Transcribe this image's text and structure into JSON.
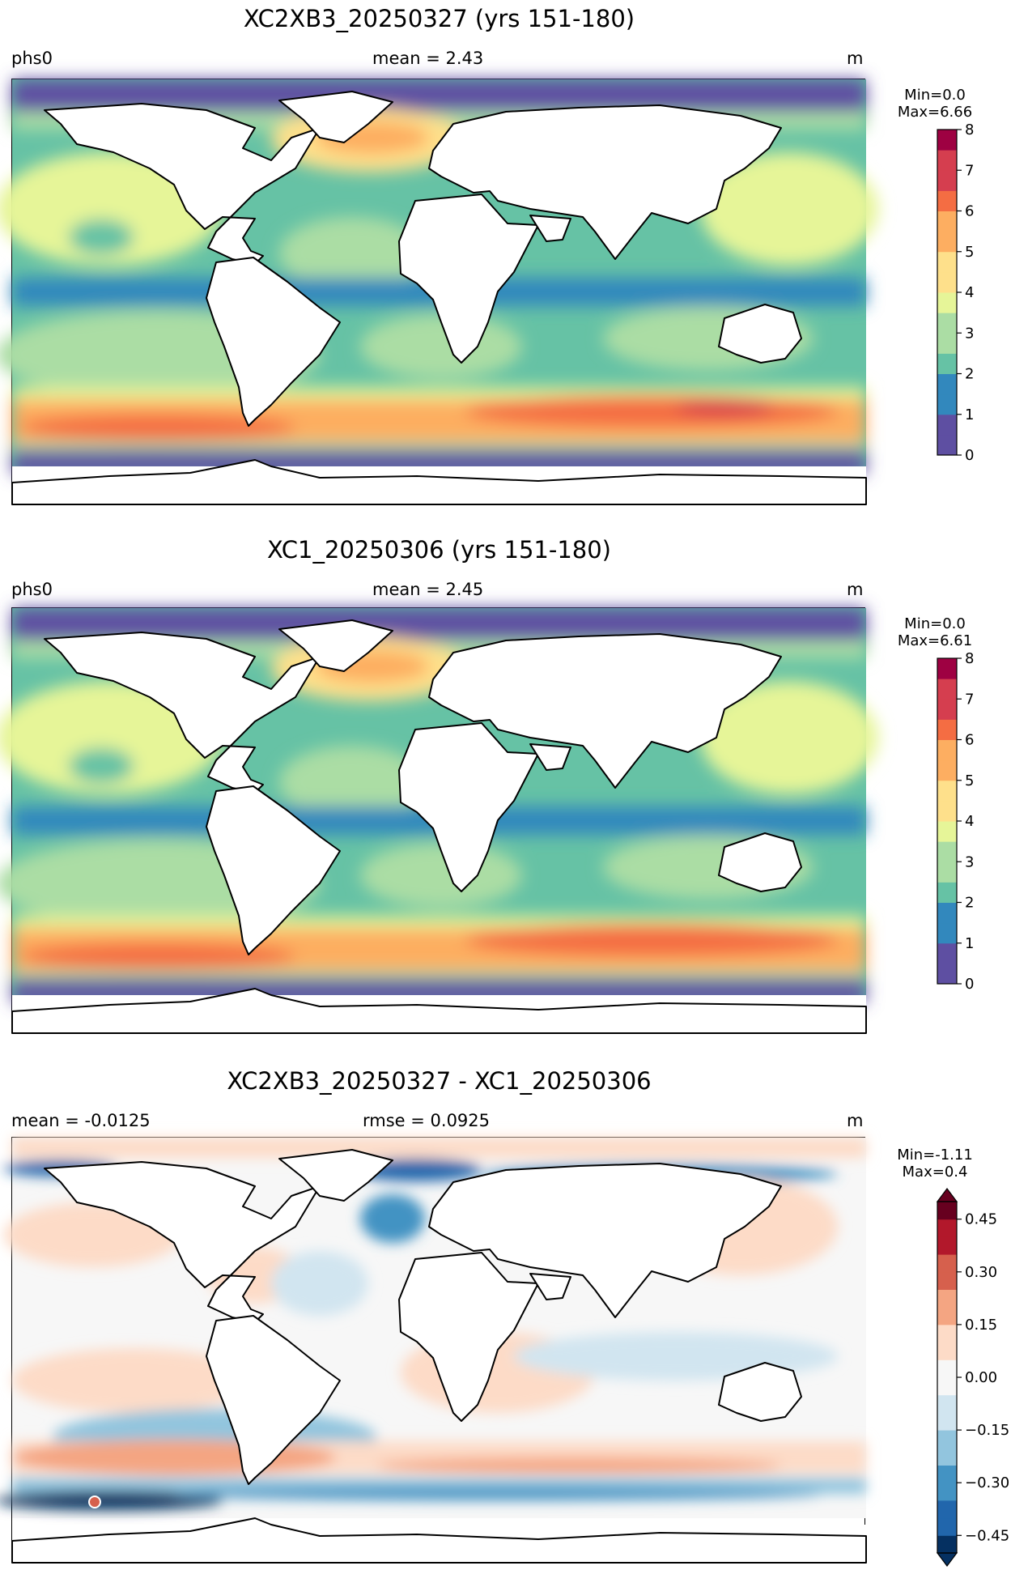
{
  "panels": [
    {
      "title": "XC2XB3_20250327 (yrs 151-180)",
      "left_label": "phs0",
      "center_label": "mean = 2.43",
      "right_label": "m",
      "cb_min_label": "Min=0.0",
      "cb_max_label": "Max=6.66",
      "colorbar_ticks": [
        "0",
        "1",
        "2",
        "3",
        "4",
        "5",
        "6",
        "7",
        "8"
      ]
    },
    {
      "title": "XC1_20250306 (yrs 151-180)",
      "left_label": "phs0",
      "center_label": "mean = 2.45",
      "right_label": "m",
      "cb_min_label": "Min=0.0",
      "cb_max_label": "Max=6.61",
      "colorbar_ticks": [
        "0",
        "1",
        "2",
        "3",
        "4",
        "5",
        "6",
        "7",
        "8"
      ]
    },
    {
      "title": "XC2XB3_20250327 - XC1_20250306",
      "left_label": "mean = -0.0125",
      "center_label": "rmse = 0.0925",
      "right_label": "m",
      "cb_min_label": "Min=-1.11",
      "cb_max_label": "Max=0.4",
      "colorbar_ticks": [
        "−0.45",
        "−0.30",
        "−0.15",
        "0.00",
        "0.15",
        "0.30",
        "0.45"
      ]
    }
  ],
  "colors": {
    "spectral": [
      "#5e4fa2",
      "#3288bd",
      "#66c2a5",
      "#abdda4",
      "#e6f598",
      "#fee08b",
      "#fdae61",
      "#f46d43",
      "#d53e4f",
      "#9e0142"
    ],
    "rdbu": [
      "#053061",
      "#2166ac",
      "#4393c3",
      "#92c5de",
      "#d1e5f0",
      "#f7f7f7",
      "#fddbc7",
      "#f4a582",
      "#d6604d",
      "#b2182b",
      "#67001f"
    ]
  }
}
